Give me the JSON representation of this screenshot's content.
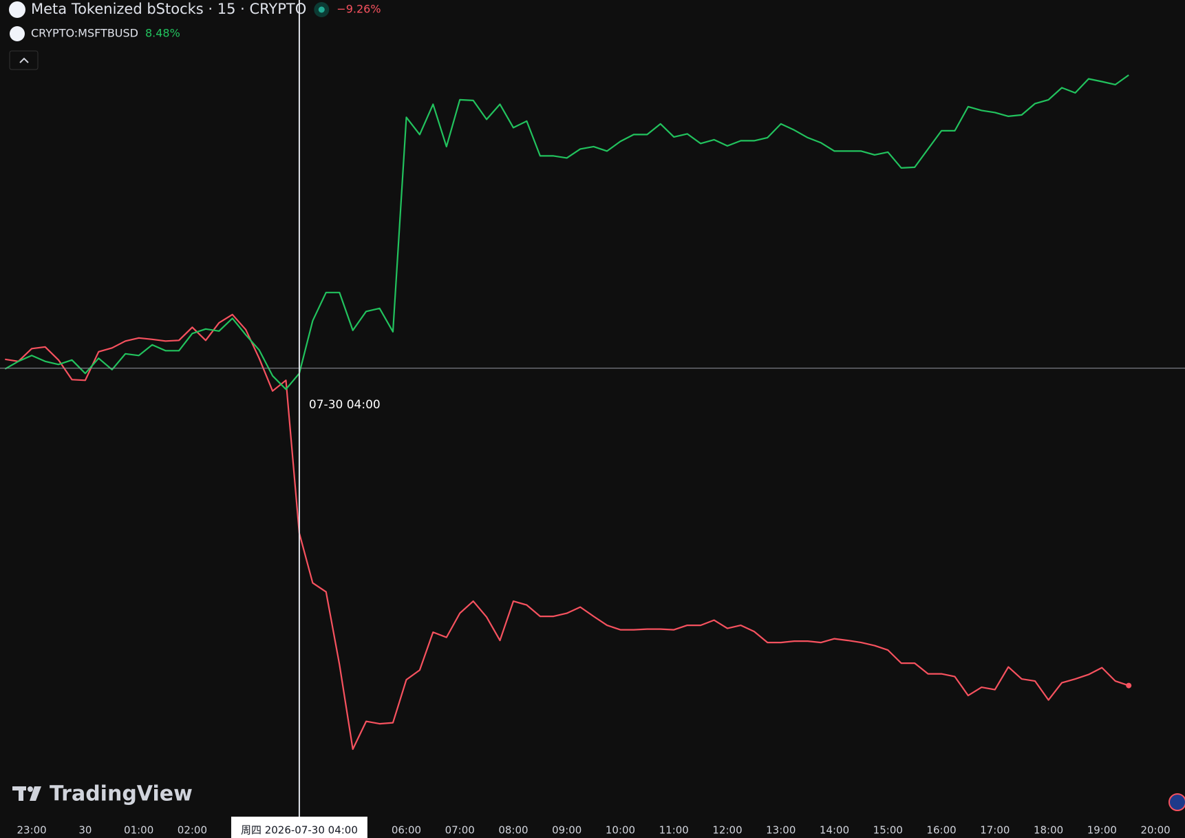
{
  "chart_data": {
    "type": "line",
    "watermark": "TradingView",
    "categories": [
      null,
      null,
      "23:00",
      null,
      null,
      null,
      "30",
      null,
      null,
      null,
      "01:00",
      null,
      null,
      null,
      "02:00",
      null,
      null,
      null,
      null,
      null,
      null,
      null,
      null,
      null,
      null,
      null,
      null,
      null,
      null,
      null,
      "06:00",
      null,
      null,
      null,
      "07:00",
      null,
      null,
      null,
      "08:00",
      null,
      null,
      null,
      "09:00",
      null,
      null,
      null,
      "10:00",
      null,
      null,
      null,
      "11:00",
      null,
      null,
      null,
      "12:00",
      null,
      null,
      null,
      "13:00",
      null,
      null,
      null,
      "14:00",
      null,
      null,
      null,
      "15:00",
      null,
      null,
      null,
      "16:00",
      null,
      null,
      null,
      "17:00",
      null,
      null,
      null,
      "18:00",
      null,
      null,
      null,
      "19:00",
      null,
      null,
      null,
      "20:00"
    ],
    "ylim": [
      -13.07,
      10.66
    ],
    "crosshair": {
      "index": 22,
      "value": -0.04,
      "x_label": "07-30 04:00",
      "axis_label": "周四  2026-07-30  04:00"
    },
    "series": [
      {
        "name": "Meta Tokenized bStocks · 15 · CRYPTO",
        "color": "#f7525f",
        "last_label": "−9.26%",
        "values": [
          0.22,
          0.16,
          0.53,
          0.58,
          0.2,
          -0.37,
          -0.39,
          0.44,
          0.55,
          0.75,
          0.84,
          0.8,
          0.75,
          0.77,
          1.15,
          0.77,
          1.28,
          1.52,
          1.08,
          0.25,
          -0.7,
          -0.39,
          -4.83,
          -6.28,
          -6.54,
          -8.65,
          -11.11,
          -10.3,
          -10.37,
          -10.34,
          -9.09,
          -8.81,
          -7.71,
          -7.86,
          -7.16,
          -6.81,
          -7.27,
          -7.95,
          -6.81,
          -6.92,
          -7.25,
          -7.25,
          -7.16,
          -6.98,
          -7.25,
          -7.51,
          -7.64,
          -7.64,
          -7.62,
          -7.62,
          -7.64,
          -7.51,
          -7.51,
          -7.36,
          -7.6,
          -7.51,
          -7.69,
          -8.01,
          -8.01,
          -7.97,
          -7.97,
          -8.01,
          -7.9,
          -7.95,
          -8.01,
          -8.1,
          -8.23,
          -8.61,
          -8.61,
          -8.92,
          -8.92,
          -9.0,
          -9.55,
          -9.31,
          -9.38,
          -8.72,
          -9.07,
          -9.13,
          -9.68,
          -9.18,
          -9.07,
          -8.94,
          -8.74,
          -9.13,
          -9.26,
          null,
          null
        ]
      },
      {
        "name": "CRYPTO:MSFTBUSD",
        "color": "#22c35e",
        "last_label": "8.48%",
        "values": [
          -0.06,
          0.16,
          0.33,
          0.16,
          0.07,
          0.2,
          -0.19,
          0.25,
          -0.08,
          0.38,
          0.33,
          0.64,
          0.47,
          0.47,
          0.97,
          1.1,
          1.04,
          1.41,
          0.93,
          0.49,
          -0.26,
          -0.65,
          -0.19,
          1.34,
          2.16,
          2.16,
          1.06,
          1.61,
          1.7,
          1.02,
          7.25,
          6.75,
          7.63,
          6.4,
          7.76,
          7.74,
          7.19,
          7.63,
          6.95,
          7.14,
          6.13,
          6.13,
          6.07,
          6.33,
          6.4,
          6.27,
          6.55,
          6.75,
          6.75,
          7.06,
          6.68,
          6.77,
          6.49,
          6.6,
          6.42,
          6.57,
          6.57,
          6.66,
          7.06,
          6.88,
          6.66,
          6.51,
          6.27,
          6.27,
          6.27,
          6.16,
          6.24,
          5.78,
          5.8,
          6.33,
          6.86,
          6.86,
          7.56,
          7.45,
          7.39,
          7.28,
          7.32,
          7.65,
          7.76,
          8.11,
          7.96,
          8.37,
          8.29,
          8.2,
          8.48,
          null,
          null
        ]
      }
    ]
  }
}
